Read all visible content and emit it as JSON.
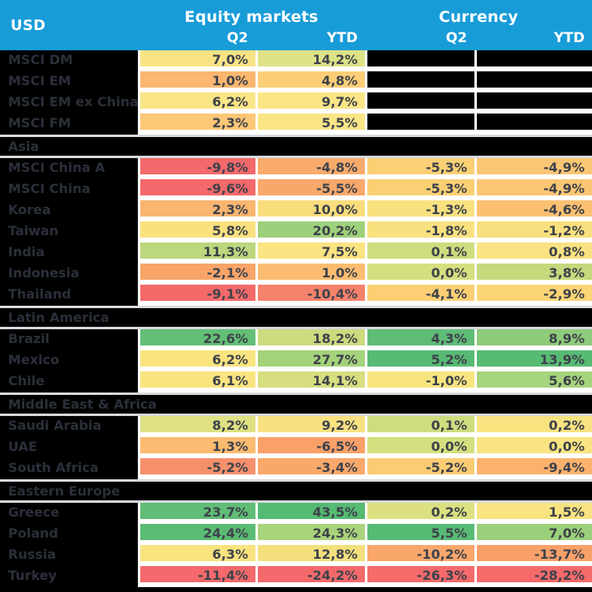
{
  "table": {
    "corner_label": "USD",
    "group_headers": [
      {
        "label": "Equity markets"
      },
      {
        "label": "Currency"
      }
    ],
    "subheaders": [
      "Q2",
      "YTD",
      "Q2",
      "YTD"
    ],
    "sections": [
      {
        "header": null,
        "rows": [
          {
            "label": "MSCI DM",
            "cells": [
              {
                "v": "7,0%",
                "c": "#f9e384"
              },
              {
                "v": "14,2%",
                "c": "#dde287"
              },
              {
                "v": "",
                "c": "#000000"
              },
              {
                "v": "",
                "c": "#000000"
              }
            ]
          },
          {
            "label": "MSCI EM",
            "cells": [
              {
                "v": "1,0%",
                "c": "#fbb66f"
              },
              {
                "v": "4,8%",
                "c": "#fcce78"
              },
              {
                "v": "",
                "c": "#000000"
              },
              {
                "v": "",
                "c": "#000000"
              }
            ]
          },
          {
            "label": "MSCI EM ex China",
            "cells": [
              {
                "v": "6,2%",
                "c": "#fae586"
              },
              {
                "v": "9,7%",
                "c": "#fae586"
              },
              {
                "v": "",
                "c": "#000000"
              },
              {
                "v": "",
                "c": "#000000"
              }
            ]
          },
          {
            "label": "MSCI FM",
            "cells": [
              {
                "v": "2,3%",
                "c": "#fcc776"
              },
              {
                "v": "5,5%",
                "c": "#fae586"
              },
              {
                "v": "",
                "c": "#000000"
              },
              {
                "v": "",
                "c": "#000000"
              }
            ]
          }
        ]
      },
      {
        "header": "Asia",
        "rows": [
          {
            "label": "MSCI China A",
            "cells": [
              {
                "v": "-9,8%",
                "c": "#f4696b"
              },
              {
                "v": "-4,8%",
                "c": "#f9ab6c"
              },
              {
                "v": "-5,3%",
                "c": "#fbd074"
              },
              {
                "v": "-4,9%",
                "c": "#fbc673"
              }
            ]
          },
          {
            "label": "MSCI China",
            "cells": [
              {
                "v": "-9,6%",
                "c": "#f4696b"
              },
              {
                "v": "-5,5%",
                "c": "#f9a86b"
              },
              {
                "v": "-5,3%",
                "c": "#fbd074"
              },
              {
                "v": "-4,9%",
                "c": "#fbc673"
              }
            ]
          },
          {
            "label": "Korea",
            "cells": [
              {
                "v": "2,3%",
                "c": "#fab56f"
              },
              {
                "v": "10,0%",
                "c": "#f9dd7c"
              },
              {
                "v": "-1,3%",
                "c": "#f9e180"
              },
              {
                "v": "-4,6%",
                "c": "#fbc071"
              }
            ]
          },
          {
            "label": "Taiwan",
            "cells": [
              {
                "v": "5,8%",
                "c": "#fae17e"
              },
              {
                "v": "20,2%",
                "c": "#9ed07b"
              },
              {
                "v": "-1,8%",
                "c": "#f9e180"
              },
              {
                "v": "-1,2%",
                "c": "#f9e07e"
              }
            ]
          },
          {
            "label": "India",
            "cells": [
              {
                "v": "11,3%",
                "c": "#bcd77d"
              },
              {
                "v": "7,5%",
                "c": "#fae381"
              },
              {
                "v": "0,1%",
                "c": "#cedd7e"
              },
              {
                "v": "0,8%",
                "c": "#f9e281"
              }
            ]
          },
          {
            "label": "Indonesia",
            "cells": [
              {
                "v": "-2,1%",
                "c": "#f8a469"
              },
              {
                "v": "1,0%",
                "c": "#fbbc71"
              },
              {
                "v": "0,0%",
                "c": "#d5df7f"
              },
              {
                "v": "3,8%",
                "c": "#c3d97c"
              }
            ]
          },
          {
            "label": "Thailand",
            "cells": [
              {
                "v": "-9,1%",
                "c": "#f46a6b"
              },
              {
                "v": "-10,4%",
                "c": "#f5826a"
              },
              {
                "v": "-4,1%",
                "c": "#fccf75"
              },
              {
                "v": "-2,9%",
                "c": "#fcd577"
              }
            ]
          }
        ]
      },
      {
        "header": "Latin America",
        "rows": [
          {
            "label": "Brazil",
            "cells": [
              {
                "v": "22,6%",
                "c": "#63bf76"
              },
              {
                "v": "18,2%",
                "c": "#ccdb7e"
              },
              {
                "v": "4,3%",
                "c": "#5fbc77"
              },
              {
                "v": "8,9%",
                "c": "#8ecb7b"
              }
            ]
          },
          {
            "label": "Mexico",
            "cells": [
              {
                "v": "6,2%",
                "c": "#fae480"
              },
              {
                "v": "27,7%",
                "c": "#a4d27b"
              },
              {
                "v": "5,2%",
                "c": "#57ba74"
              },
              {
                "v": "13,9%",
                "c": "#58bb74"
              }
            ]
          },
          {
            "label": "Chile",
            "cells": [
              {
                "v": "6,1%",
                "c": "#fae480"
              },
              {
                "v": "14,1%",
                "c": "#d6de80"
              },
              {
                "v": "-1,0%",
                "c": "#f8e57f"
              },
              {
                "v": "5,6%",
                "c": "#a6d37d"
              }
            ]
          }
        ]
      },
      {
        "header": "Middle East & Africa",
        "rows": [
          {
            "label": "Saudi Arabia",
            "cells": [
              {
                "v": "8,2%",
                "c": "#dfe183"
              },
              {
                "v": "9,2%",
                "c": "#f9e181"
              },
              {
                "v": "0,1%",
                "c": "#cedd7e"
              },
              {
                "v": "0,2%",
                "c": "#f7e380"
              }
            ]
          },
          {
            "label": "UAE",
            "cells": [
              {
                "v": "1,3%",
                "c": "#fbbb70"
              },
              {
                "v": "-6,5%",
                "c": "#f9a169"
              },
              {
                "v": "0,0%",
                "c": "#d5df7f"
              },
              {
                "v": "0,0%",
                "c": "#f8e480"
              }
            ]
          },
          {
            "label": "South Africa",
            "cells": [
              {
                "v": "-5,2%",
                "c": "#f6906c"
              },
              {
                "v": "-3,4%",
                "c": "#f9a86b"
              },
              {
                "v": "-5,2%",
                "c": "#fbcc74"
              },
              {
                "v": "-9,4%",
                "c": "#fab26d"
              }
            ]
          }
        ]
      },
      {
        "header": "Eastern Europe",
        "rows": [
          {
            "label": "Greece",
            "cells": [
              {
                "v": "23,7%",
                "c": "#5fbd75"
              },
              {
                "v": "43,5%",
                "c": "#55ba72"
              },
              {
                "v": "0,2%",
                "c": "#dce081"
              },
              {
                "v": "1,5%",
                "c": "#f7e37f"
              }
            ]
          },
          {
            "label": "Poland",
            "cells": [
              {
                "v": "24,4%",
                "c": "#5abc73"
              },
              {
                "v": "24,3%",
                "c": "#a9d47b"
              },
              {
                "v": "5,5%",
                "c": "#57bb74"
              },
              {
                "v": "7,0%",
                "c": "#9bd07a"
              }
            ]
          },
          {
            "label": "Russia",
            "cells": [
              {
                "v": "6,3%",
                "c": "#f9e37f"
              },
              {
                "v": "12,8%",
                "c": "#f3e07d"
              },
              {
                "v": "-10,2%",
                "c": "#f9a76b"
              },
              {
                "v": "-13,7%",
                "c": "#f9a06a"
              }
            ]
          },
          {
            "label": "Turkey",
            "cells": [
              {
                "v": "-11,4%",
                "c": "#f4696b"
              },
              {
                "v": "-24,2%",
                "c": "#f4696b"
              },
              {
                "v": "-26,3%",
                "c": "#f56a6b"
              },
              {
                "v": "-28,2%",
                "c": "#f56a6b"
              }
            ]
          }
        ]
      }
    ]
  },
  "colors": {
    "header_bg": "#189cd8",
    "header_text": "#ffffff",
    "label_bg": "#000000",
    "label_text": "#2a2f39",
    "value_text": "#3e424a",
    "section_separator": "#d9dade",
    "cell_gap": "#ffffff",
    "blacked_out_cell": "#000000"
  },
  "chart_data": {
    "type": "heatmap",
    "title": "",
    "unit": "%",
    "columns": [
      "Equity markets Q2",
      "Equity markets YTD",
      "Currency Q2",
      "Currency YTD"
    ],
    "rows": [
      {
        "section": null,
        "name": "MSCI DM",
        "values": [
          7.0,
          14.2,
          null,
          null
        ]
      },
      {
        "section": null,
        "name": "MSCI EM",
        "values": [
          1.0,
          4.8,
          null,
          null
        ]
      },
      {
        "section": null,
        "name": "MSCI EM ex China",
        "values": [
          6.2,
          9.7,
          null,
          null
        ]
      },
      {
        "section": null,
        "name": "MSCI FM",
        "values": [
          2.3,
          5.5,
          null,
          null
        ]
      },
      {
        "section": "Asia",
        "name": "MSCI China A",
        "values": [
          -9.8,
          -4.8,
          -5.3,
          -4.9
        ]
      },
      {
        "section": "Asia",
        "name": "MSCI China",
        "values": [
          -9.6,
          -5.5,
          -5.3,
          -4.9
        ]
      },
      {
        "section": "Asia",
        "name": "Korea",
        "values": [
          2.3,
          10.0,
          -1.3,
          -4.6
        ]
      },
      {
        "section": "Asia",
        "name": "Taiwan",
        "values": [
          5.8,
          20.2,
          -1.8,
          -1.2
        ]
      },
      {
        "section": "Asia",
        "name": "India",
        "values": [
          11.3,
          7.5,
          0.1,
          0.8
        ]
      },
      {
        "section": "Asia",
        "name": "Indonesia",
        "values": [
          -2.1,
          1.0,
          0.0,
          3.8
        ]
      },
      {
        "section": "Asia",
        "name": "Thailand",
        "values": [
          -9.1,
          -10.4,
          -4.1,
          -2.9
        ]
      },
      {
        "section": "Latin America",
        "name": "Brazil",
        "values": [
          22.6,
          18.2,
          4.3,
          8.9
        ]
      },
      {
        "section": "Latin America",
        "name": "Mexico",
        "values": [
          6.2,
          27.7,
          5.2,
          13.9
        ]
      },
      {
        "section": "Latin America",
        "name": "Chile",
        "values": [
          6.1,
          14.1,
          -1.0,
          5.6
        ]
      },
      {
        "section": "Middle East & Africa",
        "name": "Saudi Arabia",
        "values": [
          8.2,
          9.2,
          0.1,
          0.2
        ]
      },
      {
        "section": "Middle East & Africa",
        "name": "UAE",
        "values": [
          1.3,
          -6.5,
          0.0,
          0.0
        ]
      },
      {
        "section": "Middle East & Africa",
        "name": "South Africa",
        "values": [
          -5.2,
          -3.4,
          -5.2,
          -9.4
        ]
      },
      {
        "section": "Eastern Europe",
        "name": "Greece",
        "values": [
          23.7,
          43.5,
          0.2,
          1.5
        ]
      },
      {
        "section": "Eastern Europe",
        "name": "Poland",
        "values": [
          24.4,
          24.3,
          5.5,
          7.0
        ]
      },
      {
        "section": "Eastern Europe",
        "name": "Russia",
        "values": [
          6.3,
          12.8,
          -10.2,
          -13.7
        ]
      },
      {
        "section": "Eastern Europe",
        "name": "Turkey",
        "values": [
          -11.4,
          -24.2,
          -26.3,
          -28.2
        ]
      }
    ],
    "color_scale": "red (#f4696b) = strongly negative, orange (#f9a86b) = negative, yellow (#f9e180) = flat/small positive, yellow-green (#cedd7e) = moderate positive, green (#55ba72) = strongly positive",
    "legend_position": "none",
    "grid": false
  }
}
